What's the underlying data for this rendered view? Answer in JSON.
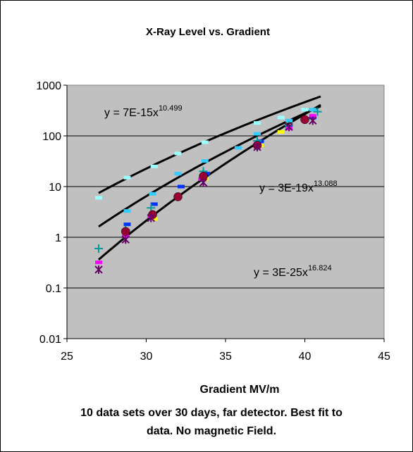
{
  "chart_data": {
    "type": "scatter",
    "title": "X-Ray Level vs. Gradient",
    "xlabel": "Gradient MV/m",
    "caption_lines": [
      "10 data sets over 30 days, far detector. Best fit to",
      "data. No magnetic Field."
    ],
    "ylabel": "",
    "xlim": [
      25,
      45
    ],
    "ylim": [
      0.01,
      1000
    ],
    "yscale": "log",
    "grid": "horizontal",
    "plot_background": "#c0c0c0",
    "x_ticks": [
      25,
      30,
      35,
      40,
      45
    ],
    "x_tick_labels": [
      "25",
      "30",
      "35",
      "40",
      "45"
    ],
    "y_ticks": [
      0.01,
      0.1,
      1,
      10,
      100,
      1000
    ],
    "y_tick_labels": [
      "0.01",
      "0.1",
      "1",
      "10",
      "100",
      "1000"
    ],
    "fits": [
      {
        "label_base": "y = 7E-15x",
        "label_exp": "10.499",
        "coef": 7e-15,
        "exp": 10.499,
        "x_range": [
          27,
          41
        ]
      },
      {
        "label_base": "y = 3E-19x",
        "label_exp": "13.088",
        "coef": 3e-19,
        "exp": 13.088,
        "x_range": [
          27,
          41
        ]
      },
      {
        "label_base": "y = 3E-25x",
        "label_exp": "16.824",
        "coef": 3e-25,
        "exp": 16.824,
        "x_range": [
          27,
          41
        ]
      }
    ],
    "series": [
      {
        "marker": "dash",
        "color": "#99ffff",
        "points": [
          [
            27,
            6
          ],
          [
            28.8,
            15
          ],
          [
            30.5,
            25
          ],
          [
            32,
            45
          ],
          [
            33.7,
            75
          ],
          [
            37,
            180
          ],
          [
            38.5,
            230
          ],
          [
            40,
            330
          ]
        ]
      },
      {
        "marker": "dash",
        "color": "#33ccff",
        "points": [
          [
            28.8,
            3.3
          ],
          [
            30.4,
            7.2
          ],
          [
            32,
            18
          ],
          [
            33.7,
            32
          ],
          [
            35.8,
            58
          ],
          [
            37,
            110
          ],
          [
            39,
            200
          ],
          [
            40.5,
            330
          ]
        ]
      },
      {
        "marker": "dash",
        "color": "#0033ff",
        "points": [
          [
            28.8,
            1.8
          ],
          [
            30.5,
            4.5
          ],
          [
            32.2,
            10
          ],
          [
            33.8,
            18
          ],
          [
            37.2,
            78
          ],
          [
            39,
            150
          ],
          [
            40.5,
            230
          ]
        ]
      },
      {
        "marker": "plus",
        "color": "#009999",
        "points": [
          [
            27,
            0.6
          ],
          [
            28.7,
            1.4
          ],
          [
            30.3,
            3.8
          ],
          [
            33.6,
            20
          ],
          [
            37,
            80
          ],
          [
            39,
            160
          ],
          [
            40.8,
            300
          ]
        ]
      },
      {
        "marker": "dash",
        "color": "#ff00ff",
        "points": [
          [
            27,
            0.32
          ],
          [
            28.7,
            1.05
          ],
          [
            30.3,
            2.6
          ],
          [
            33.5,
            14
          ],
          [
            37,
            70
          ],
          [
            39,
            140
          ],
          [
            40.5,
            250
          ]
        ]
      },
      {
        "marker": "dash",
        "color": "#ffff00",
        "points": [
          [
            30.5,
            2.3
          ],
          [
            33.7,
            14
          ],
          [
            37.2,
            65
          ],
          [
            38.5,
            120
          ],
          [
            40,
            210
          ]
        ]
      },
      {
        "marker": "circle",
        "color": "#990033",
        "points": [
          [
            28.7,
            1.3
          ],
          [
            30.4,
            2.8
          ],
          [
            32,
            6.3
          ],
          [
            33.6,
            16
          ],
          [
            37,
            65
          ],
          [
            40,
            210
          ]
        ]
      },
      {
        "marker": "x",
        "color": "#660066",
        "points": [
          [
            27,
            0.23
          ],
          [
            28.7,
            0.9
          ],
          [
            30.3,
            2.4
          ],
          [
            33.6,
            12
          ],
          [
            37,
            60
          ],
          [
            39,
            150
          ],
          [
            40.5,
            200
          ]
        ]
      }
    ]
  }
}
